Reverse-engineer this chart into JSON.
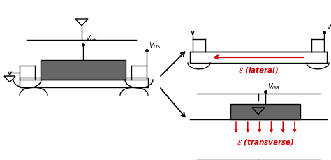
{
  "bg_color": "#ffffff",
  "line_color": "#000000",
  "red_color": "#cc0000",
  "gate_color": "#666666",
  "fig_width": 4.74,
  "fig_height": 2.29,
  "dpi": 100,
  "vgb_label": "$V_{GB}$",
  "vds_label": "$V_{DS}$",
  "transverse_label": "$\\mathcal{E}$ (transverse)",
  "lateral_label": "$\\mathcal{E}$ (lateral)"
}
